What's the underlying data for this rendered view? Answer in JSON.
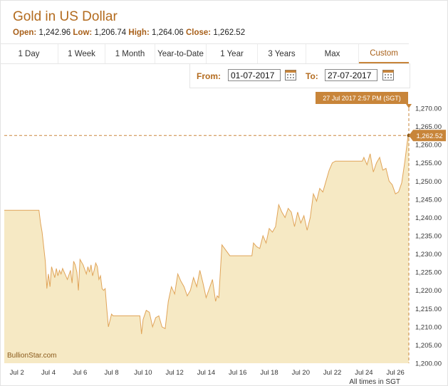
{
  "header": {
    "title": "Gold in US Dollar",
    "open_label": "Open:",
    "open": "1,242.96",
    "low_label": "Low:",
    "low": "1,206.74",
    "high_label": "High:",
    "high": "1,264.06",
    "close_label": "Close:",
    "close": "1,262.52"
  },
  "tabs": [
    {
      "label": "1 Day"
    },
    {
      "label": "1 Week"
    },
    {
      "label": "1 Month"
    },
    {
      "label": "Year-to-Date"
    },
    {
      "label": "1 Year"
    },
    {
      "label": "3 Years"
    },
    {
      "label": "Max"
    },
    {
      "label": "Custom",
      "active": true
    }
  ],
  "range": {
    "from_label": "From:",
    "from_value": "01-07-2017",
    "to_label": "To:",
    "to_value": "27-07-2017"
  },
  "colors": {
    "accent": "#c8853a",
    "fill": "#f6e9c4",
    "line": "#e0a459",
    "title": "#b36b1e"
  },
  "chart_data": {
    "type": "area",
    "x_unit": "days",
    "ylim": [
      1200,
      1270
    ],
    "y_ticks": [
      1200,
      1205,
      1210,
      1215,
      1220,
      1225,
      1230,
      1235,
      1240,
      1245,
      1250,
      1255,
      1260,
      1265,
      1270
    ],
    "y_tick_labels": [
      "1,200.00",
      "1,205.00",
      "1,210.00",
      "1,215.00",
      "1,220.00",
      "1,225.00",
      "1,230.00",
      "1,235.00",
      "1,240.00",
      "1,245.00",
      "1,250.00",
      "1,255.00",
      "1,260.00",
      "1,265.00",
      "1,270.00"
    ],
    "x_ticks": [
      {
        "x": 2,
        "label": "Jul 2"
      },
      {
        "x": 4,
        "label": "Jul 4"
      },
      {
        "x": 6,
        "label": "Jul 6"
      },
      {
        "x": 8,
        "label": "Jul 8"
      },
      {
        "x": 10,
        "label": "Jul 10"
      },
      {
        "x": 12,
        "label": "Jul 12"
      },
      {
        "x": 14,
        "label": "Jul 14"
      },
      {
        "x": 16,
        "label": "Jul 16"
      },
      {
        "x": 18,
        "label": "Jul 18"
      },
      {
        "x": 20,
        "label": "Jul 20"
      },
      {
        "x": 22,
        "label": "Jul 22"
      },
      {
        "x": 24,
        "label": "Jul 24"
      },
      {
        "x": 26,
        "label": "Jul 26"
      }
    ],
    "series": [
      {
        "x": [
          1.2,
          2.0,
          3.0,
          3.4,
          3.5,
          3.6,
          3.8,
          3.9,
          4.0,
          4.1,
          4.2,
          4.3,
          4.4,
          4.5,
          4.6,
          4.7,
          4.8,
          4.9,
          5.0,
          5.2,
          5.4,
          5.5,
          5.6,
          5.7,
          5.8,
          5.9,
          6.0,
          6.2,
          6.4,
          6.5,
          6.6,
          6.7,
          6.8,
          6.9,
          7.0,
          7.1,
          7.2,
          7.3,
          7.4,
          7.5,
          7.6,
          7.7,
          7.8,
          8.0,
          8.1,
          8.3,
          8.5,
          9.0,
          9.5,
          9.8,
          9.9,
          10.0,
          10.2,
          10.4,
          10.6,
          10.8,
          11.0,
          11.2,
          11.4,
          11.6,
          11.8,
          12.0,
          12.2,
          12.4,
          12.6,
          12.8,
          13.0,
          13.2,
          13.4,
          13.6,
          13.8,
          14.0,
          14.2,
          14.4,
          14.6,
          14.7,
          14.8,
          15.0,
          15.5,
          16.0,
          16.5,
          16.9,
          17.0,
          17.2,
          17.4,
          17.6,
          17.8,
          18.0,
          18.2,
          18.4,
          18.6,
          18.8,
          19.0,
          19.2,
          19.4,
          19.6,
          19.8,
          20.0,
          20.2,
          20.4,
          20.6,
          20.8,
          21.0,
          21.2,
          21.4,
          21.6,
          21.8,
          22.0,
          22.2,
          22.6,
          23.0,
          23.5,
          23.9,
          24.0,
          24.2,
          24.4,
          24.6,
          24.8,
          25.0,
          25.2,
          25.4,
          25.6,
          25.8,
          26.0,
          26.2,
          26.4,
          26.6,
          26.8,
          26.85
        ],
        "y": [
          1242.0,
          1242.0,
          1242.0,
          1242.0,
          1238.5,
          1236.0,
          1228.0,
          1220.5,
          1224.5,
          1221.0,
          1226.5,
          1225.0,
          1223.5,
          1226.0,
          1224.0,
          1225.5,
          1224.5,
          1226.0,
          1225.0,
          1223.0,
          1225.5,
          1222.0,
          1228.0,
          1227.0,
          1225.0,
          1220.0,
          1228.5,
          1227.0,
          1224.5,
          1226.5,
          1225.0,
          1227.0,
          1224.0,
          1225.5,
          1227.5,
          1226.5,
          1223.0,
          1224.0,
          1220.5,
          1220.0,
          1220.5,
          1215.0,
          1210.0,
          1213.5,
          1213.0,
          1213.0,
          1213.0,
          1213.0,
          1213.0,
          1213.0,
          1208.0,
          1212.0,
          1214.5,
          1214.0,
          1210.0,
          1212.5,
          1213.0,
          1210.0,
          1209.5,
          1217.0,
          1221.0,
          1219.0,
          1224.5,
          1222.5,
          1221.0,
          1218.5,
          1220.0,
          1223.5,
          1221.0,
          1225.5,
          1222.0,
          1218.0,
          1220.5,
          1223.0,
          1217.0,
          1218.5,
          1218.0,
          1232.5,
          1229.5,
          1229.5,
          1229.5,
          1229.5,
          1233.0,
          1232.0,
          1231.5,
          1235.0,
          1233.0,
          1237.0,
          1236.0,
          1237.5,
          1243.5,
          1241.5,
          1240.0,
          1242.5,
          1241.5,
          1237.5,
          1241.5,
          1238.5,
          1240.5,
          1236.5,
          1240.0,
          1246.5,
          1244.5,
          1248.0,
          1247.0,
          1250.0,
          1253.0,
          1255.0,
          1255.5,
          1255.5,
          1255.5,
          1255.5,
          1255.5,
          1256.5,
          1254.5,
          1257.5,
          1252.5,
          1255.0,
          1256.5,
          1253.0,
          1253.5,
          1250.0,
          1249.0,
          1246.5,
          1247.0,
          1249.5,
          1255.5,
          1262.5,
          1262.52
        ]
      }
    ],
    "tooltip": "27 Jul 2017 2:57 PM (SGT)",
    "last_value_label": "1,262.52",
    "watermark": "BullionStar.com",
    "footnote": "All times in SGT"
  }
}
